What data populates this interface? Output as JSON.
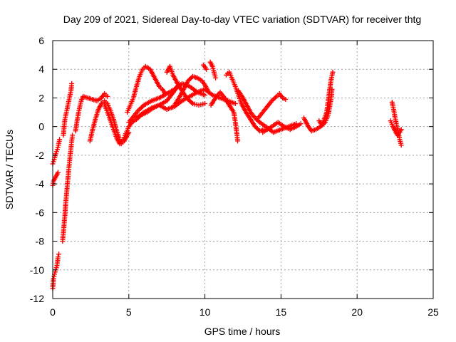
{
  "chart_data": {
    "type": "scatter",
    "title": "Day 209 of 2021, Sidereal Day-to-day VTEC variation (SDTVAR) for receiver thtg",
    "xlabel": "GPS time / hours",
    "ylabel": "SDTVAR / TECUs",
    "xlim": [
      0,
      25
    ],
    "ylim": [
      -12,
      6
    ],
    "xticks": [
      0,
      5,
      10,
      15,
      20,
      25
    ],
    "yticks": [
      -12,
      -10,
      -8,
      -6,
      -4,
      -2,
      0,
      2,
      4,
      6
    ],
    "grid": true,
    "marker": "+",
    "color": "#ff0000",
    "series": [
      {
        "segments": [
          [
            [
              0.0,
              -11.3
            ],
            [
              0.05,
              -10.6
            ],
            [
              0.12,
              -10.3
            ],
            [
              0.2,
              -10.0
            ],
            [
              0.28,
              -9.7
            ],
            [
              0.35,
              -9.1
            ],
            [
              0.4,
              -8.9
            ]
          ],
          [
            [
              0.0,
              -4.1
            ],
            [
              0.05,
              -3.8
            ],
            [
              0.15,
              -3.6
            ],
            [
              0.25,
              -3.4
            ],
            [
              0.35,
              -3.2
            ]
          ],
          [
            [
              0.0,
              -2.6
            ],
            [
              0.1,
              -2.3
            ],
            [
              0.2,
              -1.9
            ],
            [
              0.3,
              -1.6
            ],
            [
              0.38,
              -1.3
            ],
            [
              0.45,
              -0.9
            ]
          ],
          [
            [
              0.65,
              -8.0
            ],
            [
              0.7,
              -7.4
            ],
            [
              0.75,
              -6.8
            ],
            [
              0.8,
              -6.2
            ],
            [
              0.85,
              -5.4
            ],
            [
              0.9,
              -4.8
            ],
            [
              0.95,
              -4.2
            ],
            [
              1.0,
              -3.6
            ],
            [
              1.05,
              -3.0
            ],
            [
              1.1,
              -2.5
            ],
            [
              1.15,
              -2.0
            ],
            [
              1.2,
              -1.5
            ],
            [
              1.25,
              -1.0
            ],
            [
              1.3,
              -0.6
            ]
          ],
          [
            [
              0.7,
              -0.6
            ],
            [
              0.75,
              0.0
            ],
            [
              0.8,
              0.5
            ],
            [
              0.9,
              1.0
            ],
            [
              1.0,
              1.5
            ],
            [
              1.1,
              2.0
            ],
            [
              1.2,
              2.5
            ],
            [
              1.25,
              3.0
            ]
          ],
          [
            [
              1.5,
              -0.3
            ],
            [
              1.6,
              0.4
            ],
            [
              1.7,
              1.0
            ],
            [
              1.8,
              1.5
            ],
            [
              1.9,
              1.9
            ],
            [
              2.0,
              2.1
            ],
            [
              2.3,
              2.0
            ],
            [
              2.6,
              1.9
            ],
            [
              2.9,
              1.8
            ],
            [
              3.2,
              2.0
            ],
            [
              3.4,
              2.3
            ],
            [
              3.6,
              2.1
            ]
          ],
          [
            [
              2.45,
              -1.0
            ],
            [
              2.6,
              -0.3
            ],
            [
              2.8,
              0.5
            ],
            [
              3.0,
              1.2
            ],
            [
              3.2,
              1.6
            ],
            [
              3.4,
              1.8
            ],
            [
              3.6,
              1.6
            ],
            [
              3.8,
              1.1
            ],
            [
              4.0,
              0.5
            ],
            [
              4.2,
              -0.3
            ],
            [
              4.4,
              -0.9
            ],
            [
              4.5,
              -1.2
            ],
            [
              4.7,
              -1.0
            ],
            [
              4.9,
              -0.6
            ],
            [
              5.0,
              -0.4
            ]
          ],
          [
            [
              3.4,
              1.5
            ],
            [
              3.6,
              1.0
            ],
            [
              3.8,
              0.4
            ],
            [
              4.0,
              -0.2
            ],
            [
              4.2,
              -0.8
            ],
            [
              4.4,
              -1.2
            ],
            [
              4.6,
              -1.0
            ],
            [
              4.8,
              -0.5
            ],
            [
              5.0,
              0.0
            ],
            [
              5.2,
              0.3
            ],
            [
              5.5,
              0.5
            ],
            [
              5.8,
              0.8
            ],
            [
              6.2,
              1.0
            ],
            [
              6.6,
              1.3
            ],
            [
              7.0,
              1.5
            ],
            [
              7.5,
              1.8
            ],
            [
              8.0,
              2.5
            ],
            [
              8.3,
              3.0
            ]
          ],
          [
            [
              4.9,
              1.0
            ],
            [
              5.1,
              1.5
            ],
            [
              5.3,
              2.0
            ],
            [
              5.5,
              2.8
            ],
            [
              5.7,
              3.5
            ],
            [
              5.9,
              4.0
            ],
            [
              6.1,
              4.2
            ],
            [
              6.4,
              4.0
            ],
            [
              6.6,
              3.6
            ],
            [
              6.8,
              3.2
            ],
            [
              7.0,
              2.8
            ],
            [
              7.2,
              2.6
            ],
            [
              7.4,
              2.3
            ]
          ],
          [
            [
              5.0,
              0.3
            ],
            [
              5.3,
              0.7
            ],
            [
              5.6,
              1.1
            ],
            [
              6.0,
              1.5
            ],
            [
              6.5,
              1.8
            ],
            [
              7.0,
              2.0
            ],
            [
              7.5,
              2.3
            ],
            [
              8.0,
              2.6
            ],
            [
              8.5,
              3.0
            ],
            [
              9.0,
              2.8
            ],
            [
              9.5,
              2.4
            ],
            [
              10.0,
              2.2
            ]
          ],
          [
            [
              5.5,
              0.6
            ],
            [
              6.0,
              1.0
            ],
            [
              6.5,
              1.3
            ],
            [
              7.0,
              1.5
            ],
            [
              7.5,
              1.2
            ],
            [
              8.0,
              1.4
            ],
            [
              8.5,
              1.8
            ],
            [
              9.0,
              2.1
            ],
            [
              9.5,
              2.4
            ],
            [
              10.0,
              2.6
            ],
            [
              10.5,
              2.2
            ],
            [
              11.0,
              2.0
            ],
            [
              11.5,
              1.8
            ],
            [
              12.0,
              1.6
            ]
          ],
          [
            [
              7.5,
              3.8
            ],
            [
              7.7,
              4.2
            ],
            [
              7.9,
              3.6
            ],
            [
              8.2,
              3.0
            ],
            [
              8.5,
              2.5
            ],
            [
              8.8,
              2.0
            ],
            [
              9.2,
              1.6
            ],
            [
              9.6,
              1.5
            ],
            [
              10.0,
              1.6
            ]
          ],
          [
            [
              8.0,
              1.5
            ],
            [
              8.3,
              2.0
            ],
            [
              8.6,
              2.6
            ],
            [
              8.9,
              3.2
            ],
            [
              9.2,
              3.5
            ],
            [
              9.5,
              3.4
            ],
            [
              9.8,
              3.2
            ],
            [
              10.0,
              2.9
            ],
            [
              10.2,
              2.5
            ]
          ],
          [
            [
              9.9,
              4.3
            ],
            [
              10.1,
              4.0
            ]
          ],
          [
            [
              10.35,
              4.5
            ],
            [
              10.5,
              4.2
            ],
            [
              10.6,
              3.8
            ],
            [
              10.7,
              3.4
            ]
          ],
          [
            [
              10.4,
              1.5
            ],
            [
              10.7,
              2.0
            ],
            [
              11.0,
              2.4
            ],
            [
              11.3,
              2.0
            ],
            [
              11.6,
              1.5
            ],
            [
              11.9,
              1.0
            ],
            [
              12.0,
              0.3
            ],
            [
              12.1,
              -0.5
            ],
            [
              12.15,
              -1.0
            ]
          ],
          [
            [
              11.4,
              3.6
            ],
            [
              11.6,
              3.8
            ],
            [
              11.8,
              3.3
            ],
            [
              12.0,
              2.8
            ],
            [
              12.2,
              2.2
            ],
            [
              12.4,
              1.6
            ],
            [
              12.7,
              1.0
            ],
            [
              13.0,
              0.5
            ],
            [
              13.3,
              0.0
            ],
            [
              13.6,
              -0.3
            ],
            [
              13.9,
              -0.2
            ]
          ],
          [
            [
              12.2,
              2.5
            ],
            [
              12.5,
              2.0
            ],
            [
              12.8,
              1.4
            ],
            [
              13.0,
              1.0
            ],
            [
              13.3,
              0.6
            ],
            [
              13.6,
              0.3
            ],
            [
              14.0,
              0.0
            ],
            [
              14.5,
              -0.4
            ],
            [
              15.0,
              -0.2
            ],
            [
              15.5,
              0.0
            ],
            [
              16.0,
              0.2
            ]
          ],
          [
            [
              13.5,
              0.6
            ],
            [
              13.8,
              1.0
            ],
            [
              14.1,
              1.4
            ],
            [
              14.4,
              1.8
            ],
            [
              14.7,
              2.1
            ],
            [
              14.9,
              2.3
            ],
            [
              15.1,
              2.0
            ],
            [
              15.3,
              1.9
            ]
          ],
          [
            [
              13.8,
              -0.4
            ],
            [
              14.1,
              -0.2
            ],
            [
              14.4,
              0.0
            ],
            [
              14.8,
              0.3
            ],
            [
              15.2,
              0.0
            ],
            [
              15.6,
              -0.2
            ],
            [
              16.0,
              0.0
            ],
            [
              16.3,
              0.2
            ]
          ],
          [
            [
              16.5,
              0.6
            ],
            [
              16.8,
              0.0
            ],
            [
              17.0,
              -0.3
            ],
            [
              17.3,
              -0.2
            ],
            [
              17.6,
              0.0
            ],
            [
              17.9,
              0.3
            ],
            [
              18.1,
              0.8
            ],
            [
              18.2,
              1.4
            ],
            [
              18.3,
              2.0
            ],
            [
              18.35,
              2.6
            ]
          ],
          [
            [
              17.5,
              0.4
            ],
            [
              17.7,
              0.1
            ],
            [
              18.0,
              1.0
            ],
            [
              18.1,
              1.8
            ],
            [
              18.2,
              2.6
            ],
            [
              18.3,
              3.3
            ],
            [
              18.4,
              3.8
            ]
          ],
          [
            [
              22.3,
              1.7
            ],
            [
              22.4,
              1.2
            ],
            [
              22.5,
              0.6
            ],
            [
              22.6,
              0.1
            ],
            [
              22.7,
              -0.4
            ],
            [
              22.8,
              -0.9
            ],
            [
              22.9,
              -1.3
            ]
          ],
          [
            [
              22.2,
              0.4
            ],
            [
              22.35,
              0.0
            ],
            [
              22.5,
              -0.3
            ],
            [
              22.65,
              -0.6
            ],
            [
              22.8,
              -0.4
            ],
            [
              22.9,
              -0.2
            ]
          ]
        ]
      }
    ]
  }
}
